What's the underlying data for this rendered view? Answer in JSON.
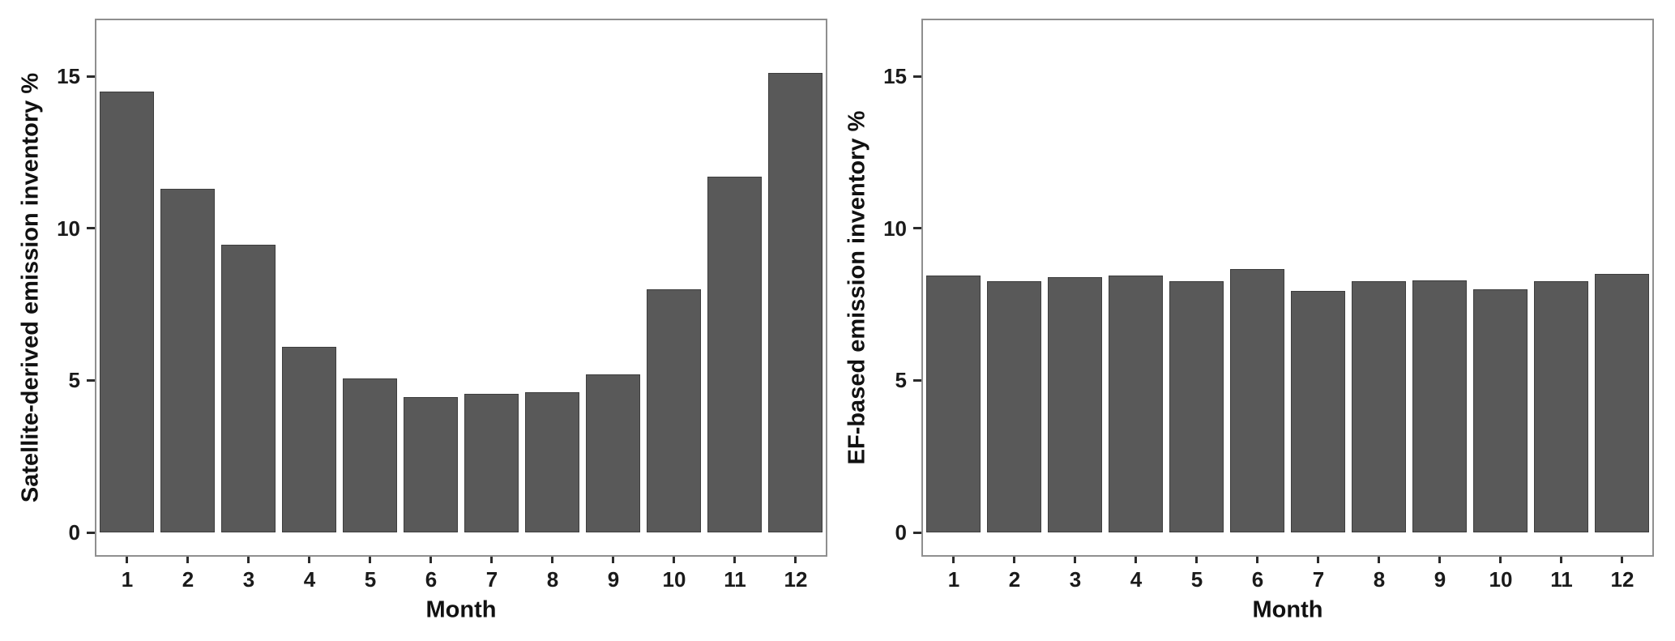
{
  "figure_description": "Two side-by-side grey bar charts comparing monthly percentage distributions of emission inventories",
  "colors": {
    "background": "#ffffff",
    "bar_fill": "#595959",
    "bar_border": "#3d3d3d",
    "panel_border": "#8f8f8f",
    "tick_mark": "#2b2b2b",
    "text": "#1a1a1a"
  },
  "chart_data": [
    {
      "type": "bar",
      "title": "",
      "xlabel": "Month",
      "ylabel": "Satellite-derived emission inventory %",
      "categories": [
        "1",
        "2",
        "3",
        "4",
        "5",
        "6",
        "7",
        "8",
        "9",
        "10",
        "11",
        "12"
      ],
      "values": [
        14.5,
        11.3,
        9.45,
        6.1,
        5.05,
        4.45,
        4.55,
        4.6,
        5.2,
        8.0,
        11.7,
        15.1
      ],
      "yticks": [
        0,
        5,
        10,
        15
      ],
      "ylim": [
        -0.75,
        16.85
      ],
      "grid": false,
      "legend": "none"
    },
    {
      "type": "bar",
      "title": "",
      "xlabel": "Month",
      "ylabel": "EF-based emission inventory %",
      "categories": [
        "1",
        "2",
        "3",
        "4",
        "5",
        "6",
        "7",
        "8",
        "9",
        "10",
        "11",
        "12"
      ],
      "values": [
        8.45,
        8.25,
        8.4,
        8.45,
        8.25,
        8.65,
        7.95,
        8.25,
        8.3,
        8.0,
        8.25,
        8.5
      ],
      "yticks": [
        0,
        5,
        10,
        15
      ],
      "ylim": [
        -0.75,
        16.85
      ],
      "grid": false,
      "legend": "none"
    }
  ]
}
